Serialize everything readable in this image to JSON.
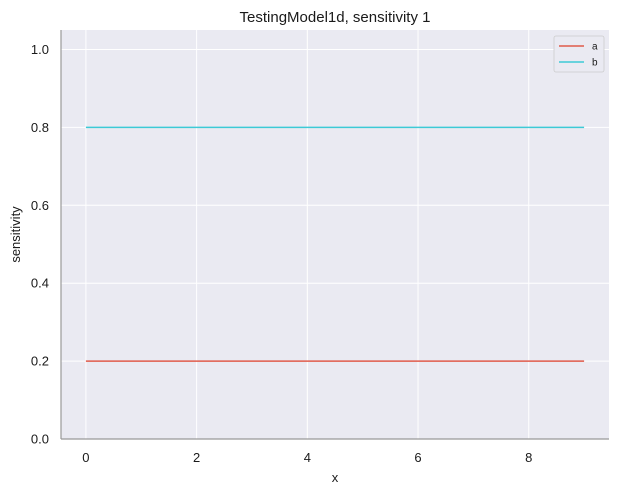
{
  "chart_data": {
    "type": "line",
    "title": "TestingModel1d, sensitivity 1",
    "xlabel": "x",
    "ylabel": "sensitivity",
    "xlim": [
      -0.45,
      9.45
    ],
    "ylim": [
      0.0,
      1.05
    ],
    "xticks": [
      0,
      2,
      4,
      6,
      8
    ],
    "xtick_labels": [
      "0",
      "2",
      "4",
      "6",
      "8"
    ],
    "yticks": [
      0.0,
      0.2,
      0.4,
      0.6,
      0.8,
      1.0
    ],
    "ytick_labels": [
      "0.0",
      "0.2",
      "0.4",
      "0.6",
      "0.8",
      "1.0"
    ],
    "grid": true,
    "legend_position": "top-right",
    "x": [
      0,
      1,
      2,
      3,
      4,
      5,
      6,
      7,
      8,
      9
    ],
    "series": [
      {
        "name": "a",
        "color": "#e05b4b",
        "values": [
          0.2,
          0.2,
          0.2,
          0.2,
          0.2,
          0.2,
          0.2,
          0.2,
          0.2,
          0.2
        ]
      },
      {
        "name": "b",
        "color": "#3ccad6",
        "values": [
          0.8,
          0.8,
          0.8,
          0.8,
          0.8,
          0.8,
          0.8,
          0.8,
          0.8,
          0.8
        ]
      }
    ],
    "colors": {
      "plot_background": "#eaeaf2",
      "grid": "#ffffff",
      "axis": "#999999"
    }
  }
}
